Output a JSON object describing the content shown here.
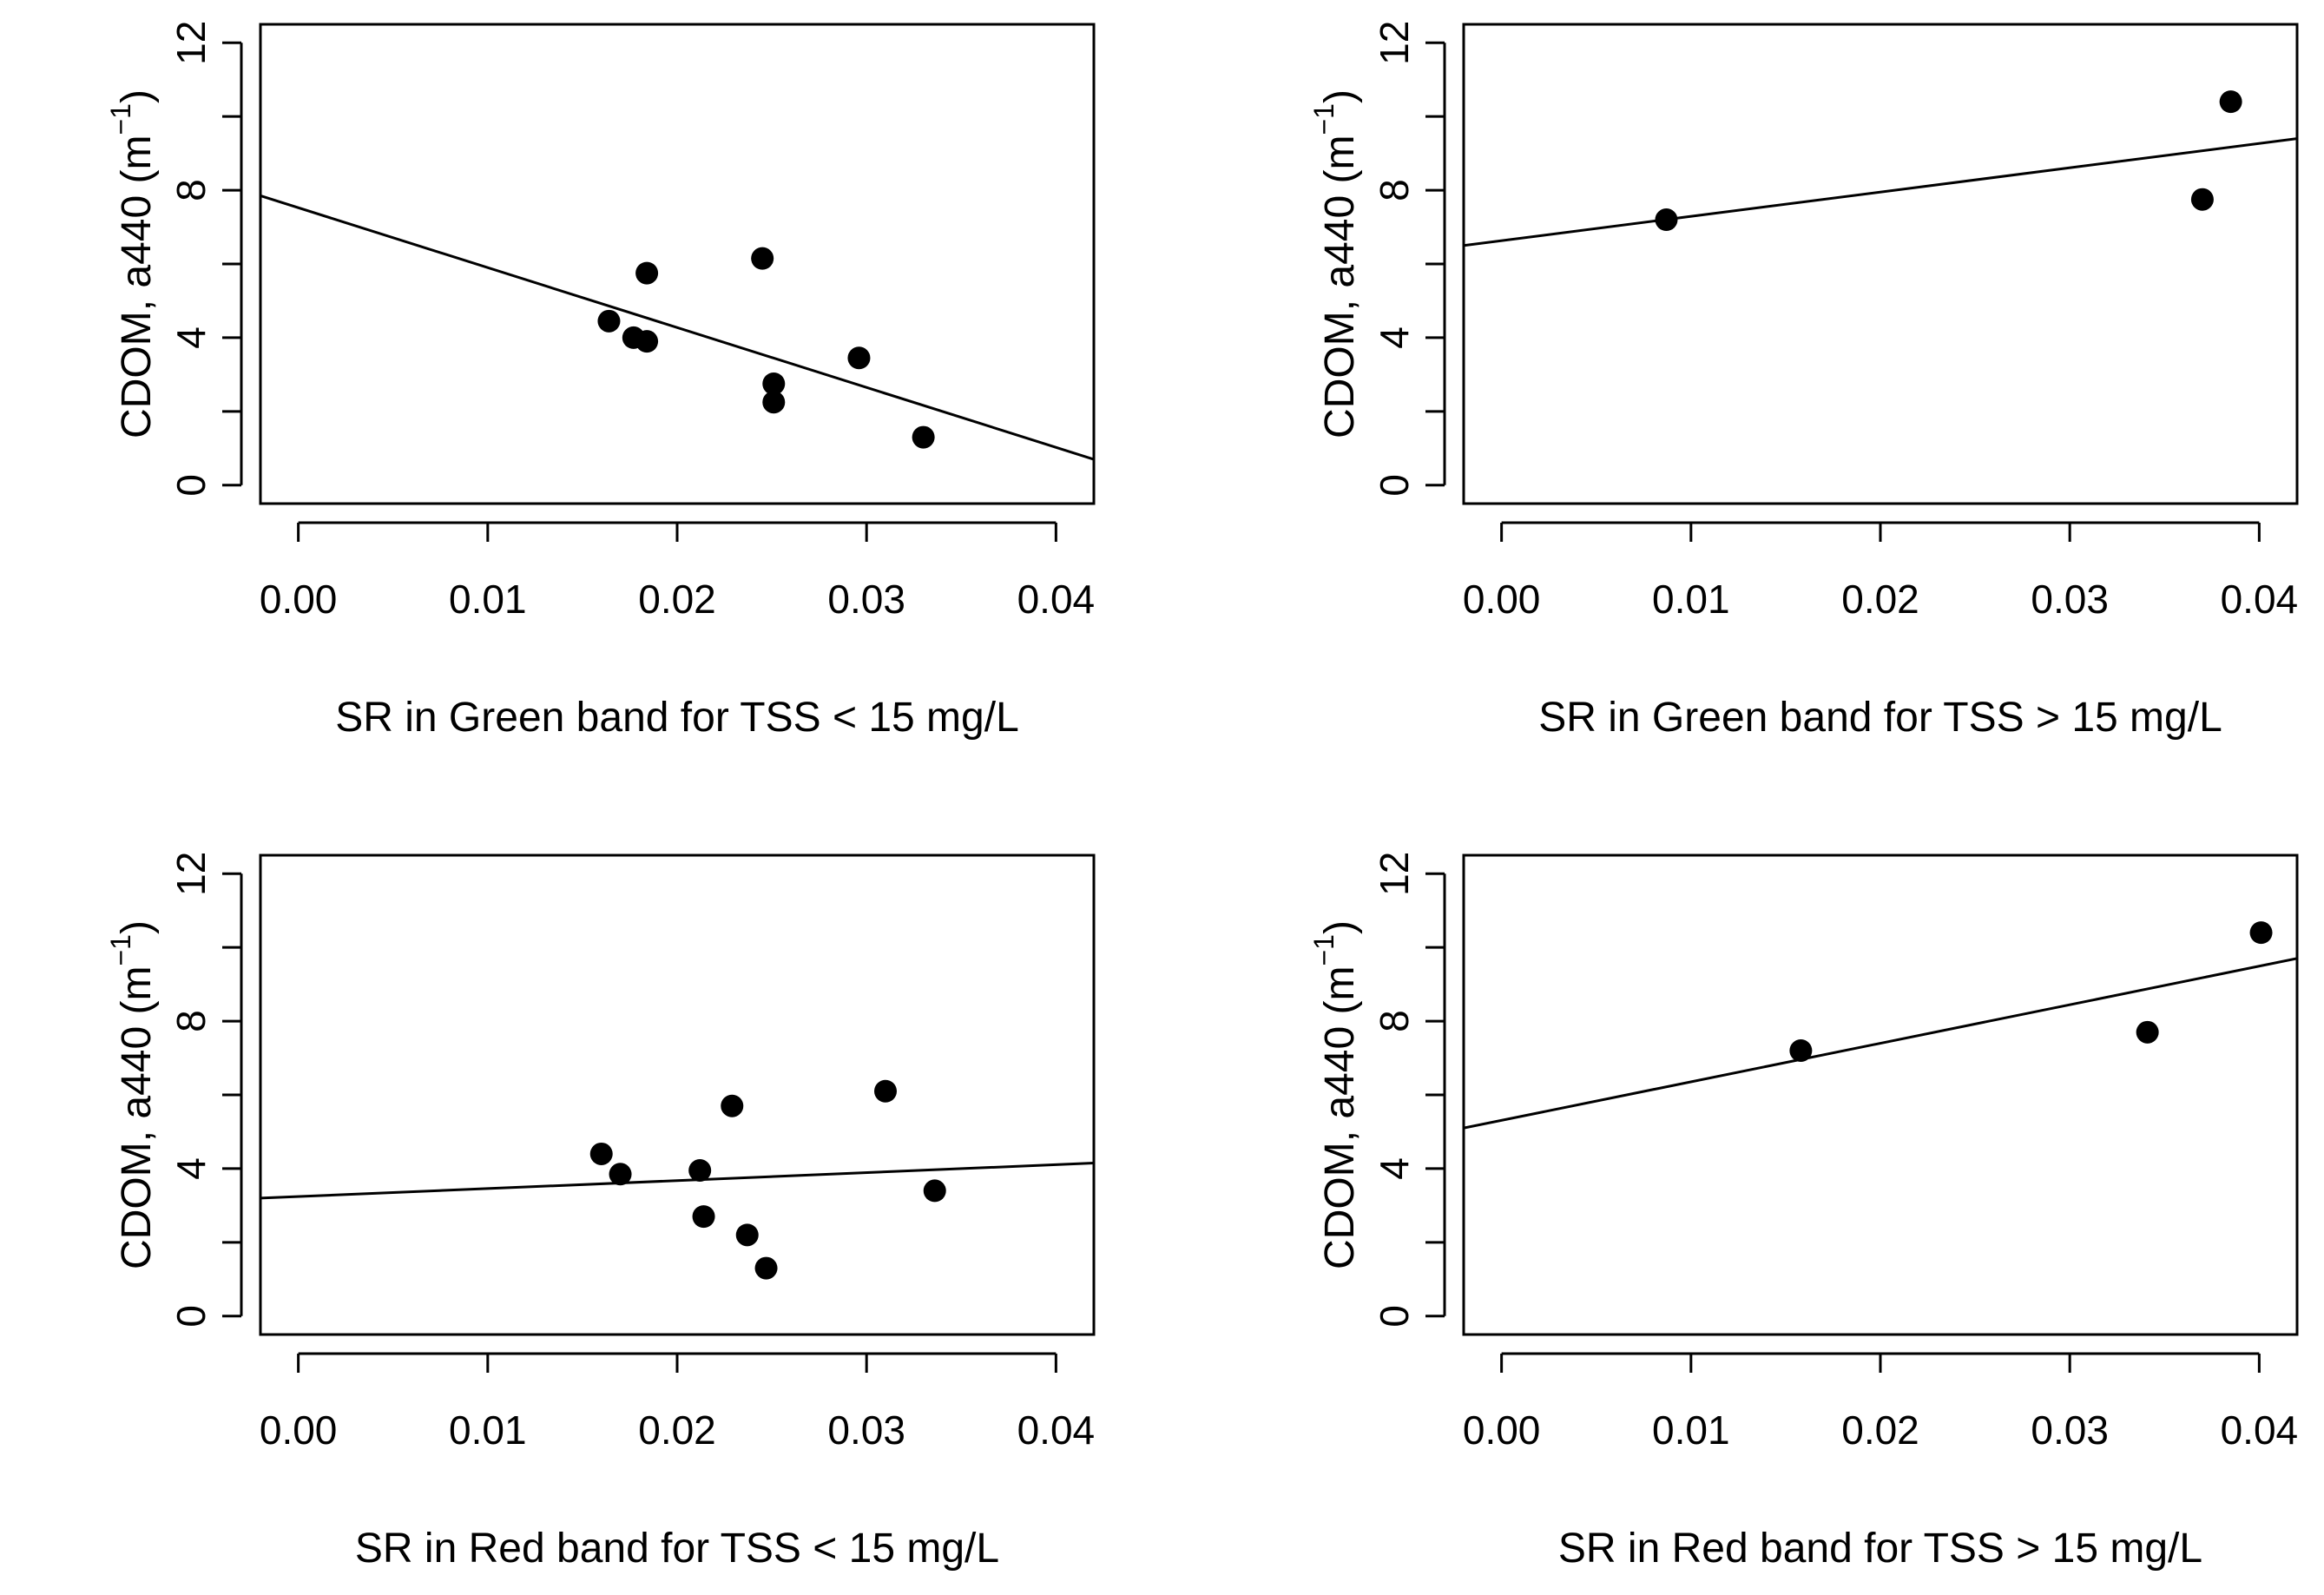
{
  "chart_data": [
    {
      "type": "scatter",
      "xlabel": "SR in Green band for TSS < 15 mg/L",
      "ylabel": {
        "base": "CDOM, a440 (m",
        "sup": "−1",
        "close": ")"
      },
      "xlim": [
        -0.002,
        0.042
      ],
      "ylim": [
        -0.5,
        12.5
      ],
      "xticks": [
        0.0,
        0.01,
        0.02,
        0.03,
        0.04
      ],
      "xtick_labels": [
        "0.00",
        "0.01",
        "0.02",
        "0.03",
        "0.04"
      ],
      "yticks": [
        0,
        4,
        8,
        12
      ],
      "ytick_labels": [
        "0",
        "4",
        "8",
        "12"
      ],
      "grid": false,
      "series": [
        {
          "points": [
            {
              "x": 0.0164,
              "y": 4.45
            },
            {
              "x": 0.0177,
              "y": 4.0
            },
            {
              "x": 0.0184,
              "y": 3.9
            },
            {
              "x": 0.0184,
              "y": 5.75
            },
            {
              "x": 0.0245,
              "y": 6.15
            },
            {
              "x": 0.0251,
              "y": 2.75
            },
            {
              "x": 0.0251,
              "y": 2.25
            },
            {
              "x": 0.0296,
              "y": 3.45
            },
            {
              "x": 0.033,
              "y": 1.3
            }
          ],
          "fit": [
            {
              "x": -0.002,
              "y": 7.85
            },
            {
              "x": 0.042,
              "y": 0.7
            }
          ]
        }
      ]
    },
    {
      "type": "scatter",
      "xlabel": "SR in Green band for TSS > 15 mg/L",
      "ylabel": {
        "base": "CDOM, a440 (m",
        "sup": "−1",
        "close": ")"
      },
      "xlim": [
        -0.002,
        0.042
      ],
      "ylim": [
        -0.5,
        12.5
      ],
      "xticks": [
        0.0,
        0.01,
        0.02,
        0.03,
        0.04
      ],
      "xtick_labels": [
        "0.00",
        "0.01",
        "0.02",
        "0.03",
        "0.04"
      ],
      "yticks": [
        0,
        4,
        8,
        12
      ],
      "ytick_labels": [
        "0",
        "4",
        "8",
        "12"
      ],
      "grid": false,
      "series": [
        {
          "points": [
            {
              "x": 0.0087,
              "y": 7.2
            },
            {
              "x": 0.037,
              "y": 7.75
            },
            {
              "x": 0.0385,
              "y": 10.4
            }
          ],
          "fit": [
            {
              "x": -0.002,
              "y": 6.5
            },
            {
              "x": 0.042,
              "y": 9.4
            }
          ]
        }
      ]
    },
    {
      "type": "scatter",
      "xlabel": "SR in Red band for TSS < 15 mg/L",
      "ylabel": {
        "base": "CDOM, a440 (m",
        "sup": "−1",
        "close": ")"
      },
      "xlim": [
        -0.002,
        0.042
      ],
      "ylim": [
        -0.5,
        12.5
      ],
      "xticks": [
        0.0,
        0.01,
        0.02,
        0.03,
        0.04
      ],
      "xtick_labels": [
        "0.00",
        "0.01",
        "0.02",
        "0.03",
        "0.04"
      ],
      "yticks": [
        0,
        4,
        8,
        12
      ],
      "ytick_labels": [
        "0",
        "4",
        "8",
        "12"
      ],
      "grid": false,
      "series": [
        {
          "points": [
            {
              "x": 0.016,
              "y": 4.4
            },
            {
              "x": 0.017,
              "y": 3.85
            },
            {
              "x": 0.0212,
              "y": 3.95
            },
            {
              "x": 0.0214,
              "y": 2.7
            },
            {
              "x": 0.0229,
              "y": 5.7
            },
            {
              "x": 0.0237,
              "y": 2.2
            },
            {
              "x": 0.0247,
              "y": 1.3
            },
            {
              "x": 0.031,
              "y": 6.1
            },
            {
              "x": 0.0336,
              "y": 3.4
            }
          ],
          "fit": [
            {
              "x": -0.002,
              "y": 3.2
            },
            {
              "x": 0.042,
              "y": 4.15
            }
          ]
        }
      ]
    },
    {
      "type": "scatter",
      "xlabel": "SR in Red band for TSS > 15 mg/L",
      "ylabel": {
        "base": "CDOM, a440 (m",
        "sup": "−1",
        "close": ")"
      },
      "xlim": [
        -0.002,
        0.042
      ],
      "ylim": [
        -0.5,
        12.5
      ],
      "xticks": [
        0.0,
        0.01,
        0.02,
        0.03,
        0.04
      ],
      "xtick_labels": [
        "0.00",
        "0.01",
        "0.02",
        "0.03",
        "0.04"
      ],
      "yticks": [
        0,
        4,
        8,
        12
      ],
      "ytick_labels": [
        "0",
        "4",
        "8",
        "12"
      ],
      "grid": false,
      "series": [
        {
          "points": [
            {
              "x": 0.0158,
              "y": 7.2
            },
            {
              "x": 0.0341,
              "y": 7.7
            },
            {
              "x": 0.0401,
              "y": 10.4
            }
          ],
          "fit": [
            {
              "x": -0.002,
              "y": 5.1
            },
            {
              "x": 0.042,
              "y": 9.7
            }
          ]
        }
      ]
    }
  ]
}
